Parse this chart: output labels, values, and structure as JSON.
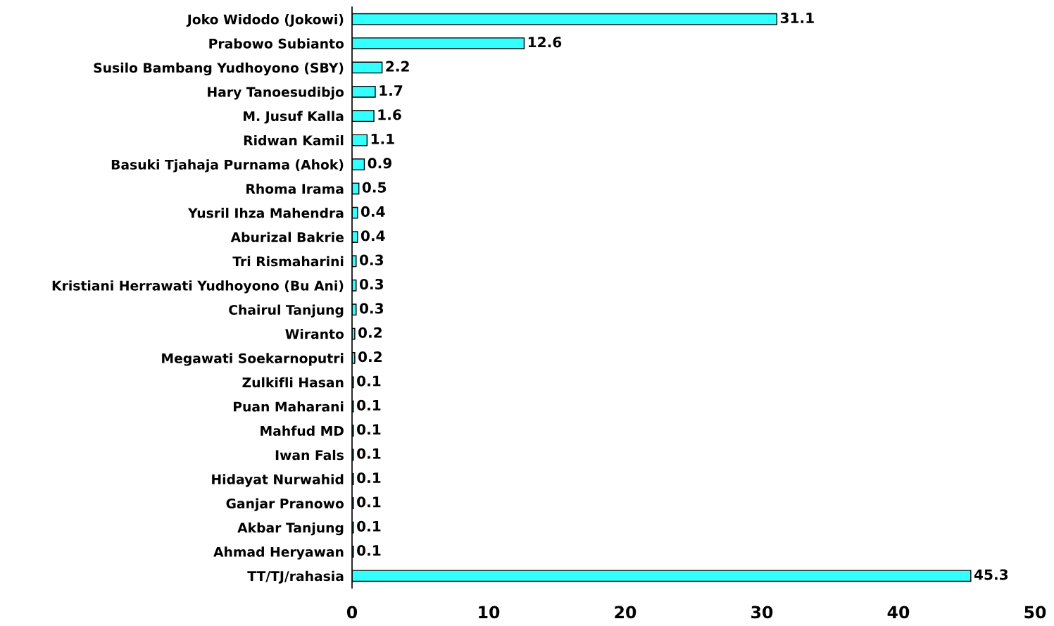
{
  "chart_data": {
    "type": "bar",
    "orientation": "horizontal",
    "categories": [
      "Joko Widodo (Jokowi)",
      "Prabowo Subianto",
      "Susilo Bambang Yudhoyono (SBY)",
      "Hary Tanoesudibjo",
      "M. Jusuf Kalla",
      "Ridwan Kamil",
      "Basuki Tjahaja Purnama (Ahok)",
      "Rhoma Irama",
      "Yusril Ihza Mahendra",
      "Aburizal Bakrie",
      "Tri Rismaharini",
      "Kristiani Herrawati Yudhoyono (Bu Ani)",
      "Chairul Tanjung",
      "Wiranto",
      "Megawati Soekarnoputri",
      "Zulkifli Hasan",
      "Puan Maharani",
      "Mahfud MD",
      "Iwan Fals",
      "Hidayat Nurwahid",
      "Ganjar Pranowo",
      "Akbar Tanjung",
      "Ahmad Heryawan",
      "TT/TJ/rahasia"
    ],
    "values": [
      31.1,
      12.6,
      2.2,
      1.7,
      1.6,
      1.1,
      0.9,
      0.5,
      0.4,
      0.4,
      0.3,
      0.3,
      0.3,
      0.2,
      0.2,
      0.1,
      0.1,
      0.1,
      0.1,
      0.1,
      0.1,
      0.1,
      0.1,
      45.3
    ],
    "color": "#33ffff",
    "xlim": [
      0,
      50
    ],
    "xticks": [
      0,
      10,
      20,
      30,
      40,
      50
    ],
    "data_labels": true,
    "grid": false,
    "legend": false
  }
}
